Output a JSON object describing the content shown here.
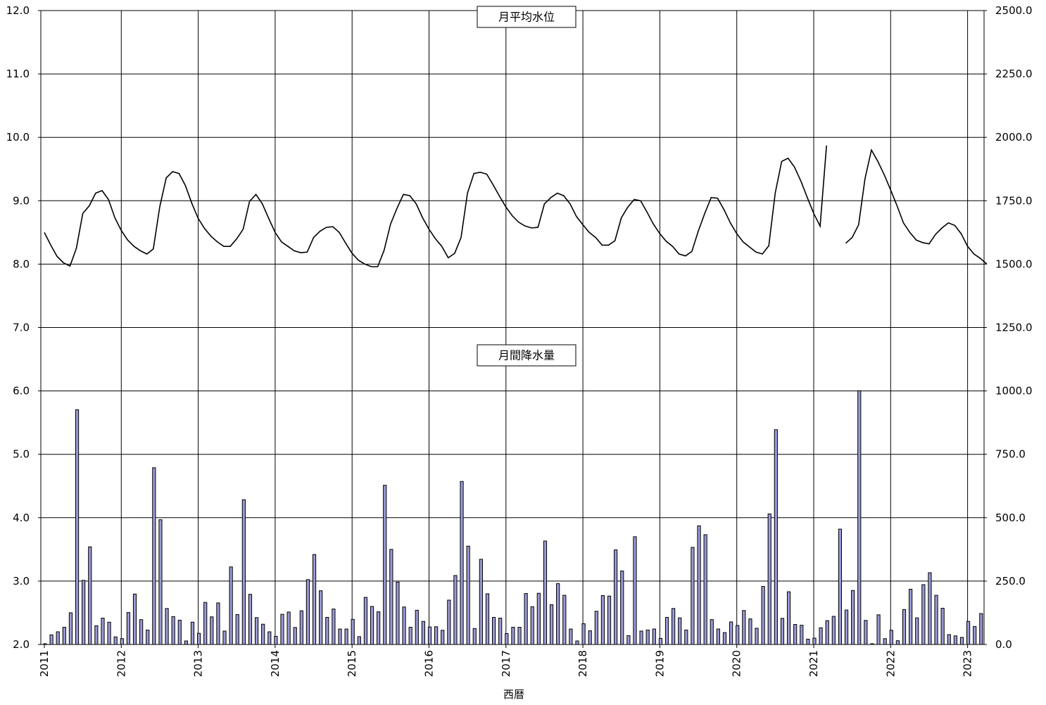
{
  "chart_data": {
    "type": "bar+line",
    "title": "",
    "xlabel": "西暦",
    "ylabel_left": "",
    "ylabel_right": "",
    "x_ticks": [
      "2011",
      "2012",
      "2013",
      "2014",
      "2015",
      "2016",
      "2017",
      "2018",
      "2019",
      "2020",
      "2021",
      "2022",
      "2023"
    ],
    "y_left": {
      "min": 2.0,
      "max": 12.0,
      "step": 1.0,
      "ticks": [
        "2.0",
        "3.0",
        "4.0",
        "5.0",
        "6.0",
        "7.0",
        "8.0",
        "9.0",
        "10.0",
        "11.0",
        "12.0"
      ]
    },
    "y_right": {
      "min": 0.0,
      "max": 2500.0,
      "step": 250.0,
      "ticks": [
        "0.0",
        "250.0",
        "500.0",
        "750.0",
        "1000.0",
        "1250.0",
        "1500.0",
        "1750.0",
        "2000.0",
        "2250.0",
        "2500.0"
      ]
    },
    "grid": true,
    "annotations": {
      "water_level_label": "月平均水位",
      "precipitation_label": "月間降水量"
    },
    "series": [
      {
        "type": "line",
        "axis": "left",
        "start": "2011-01",
        "values": [
          8.5,
          8.3,
          8.12,
          8.02,
          7.97,
          8.25,
          8.8,
          8.92,
          9.12,
          9.16,
          9.02,
          8.73,
          8.53,
          8.38,
          8.28,
          8.21,
          8.16,
          8.24,
          8.9,
          9.36,
          9.46,
          9.43,
          9.24,
          8.96,
          8.72,
          8.56,
          8.44,
          8.35,
          8.28,
          8.28,
          8.4,
          8.55,
          8.99,
          9.1,
          8.95,
          8.72,
          8.5,
          8.35,
          8.28,
          8.21,
          8.18,
          8.19,
          8.42,
          8.52,
          8.58,
          8.59,
          8.5,
          8.33,
          8.17,
          8.06,
          8.0,
          7.96,
          7.96,
          8.22,
          8.63,
          8.88,
          9.1,
          9.08,
          8.95,
          8.73,
          8.55,
          8.4,
          8.28,
          8.1,
          8.17,
          8.42,
          9.12,
          9.43,
          9.45,
          9.42,
          9.25,
          9.07,
          8.9,
          8.76,
          8.66,
          8.6,
          8.57,
          8.58,
          8.95,
          9.05,
          9.12,
          9.08,
          8.95,
          8.75,
          8.62,
          8.5,
          8.42,
          8.3,
          8.3,
          8.37,
          8.73,
          8.9,
          9.02,
          9.0,
          8.82,
          8.63,
          8.48,
          8.36,
          8.28,
          8.16,
          8.13,
          8.2,
          8.52,
          8.8,
          9.05,
          9.04,
          8.86,
          8.65,
          8.48,
          8.35,
          8.27,
          8.19,
          8.16,
          8.29,
          9.12,
          9.62,
          9.67,
          9.53,
          9.31,
          9.05,
          8.8,
          8.6,
          9.87,
          null,
          null,
          8.33,
          8.42,
          8.62,
          9.35,
          9.8,
          9.62,
          9.41,
          9.17,
          8.92,
          8.65,
          8.5,
          8.38,
          8.34,
          8.32,
          8.47,
          8.57,
          8.65,
          8.61,
          8.48,
          8.28,
          8.16,
          8.09,
          8.0
        ]
      },
      {
        "type": "bar",
        "axis": "right",
        "start": "2011-01",
        "values": [
          3,
          38,
          50,
          68,
          125,
          926,
          253,
          385,
          74,
          104,
          88,
          30,
          23,
          126,
          199,
          98,
          57,
          697,
          492,
          142,
          110,
          96,
          14,
          88,
          44,
          166,
          109,
          164,
          53,
          306,
          118,
          571,
          198,
          106,
          80,
          50,
          32,
          119,
          128,
          67,
          133,
          256,
          355,
          212,
          107,
          140,
          61,
          61,
          99,
          31,
          186,
          150,
          129,
          628,
          375,
          246,
          148,
          68,
          135,
          91,
          69,
          70,
          56,
          175,
          272,
          643,
          388,
          63,
          336,
          200,
          107,
          104,
          43,
          68,
          68,
          201,
          149,
          202,
          408,
          157,
          240,
          194,
          61,
          14,
          82,
          54,
          131,
          193,
          191,
          373,
          290,
          35,
          425,
          53,
          57,
          61,
          24,
          107,
          142,
          105,
          57,
          383,
          468,
          433,
          98,
          61,
          47,
          89,
          75,
          134,
          101,
          64,
          229,
          515,
          847,
          103,
          208,
          79,
          76,
          21,
          25,
          66,
          94,
          111,
          455,
          136,
          213,
          1001,
          95,
          3,
          117,
          23,
          56,
          15,
          138,
          218,
          105,
          236,
          283,
          194,
          143,
          39,
          34,
          28,
          91,
          71,
          122
        ]
      }
    ]
  }
}
